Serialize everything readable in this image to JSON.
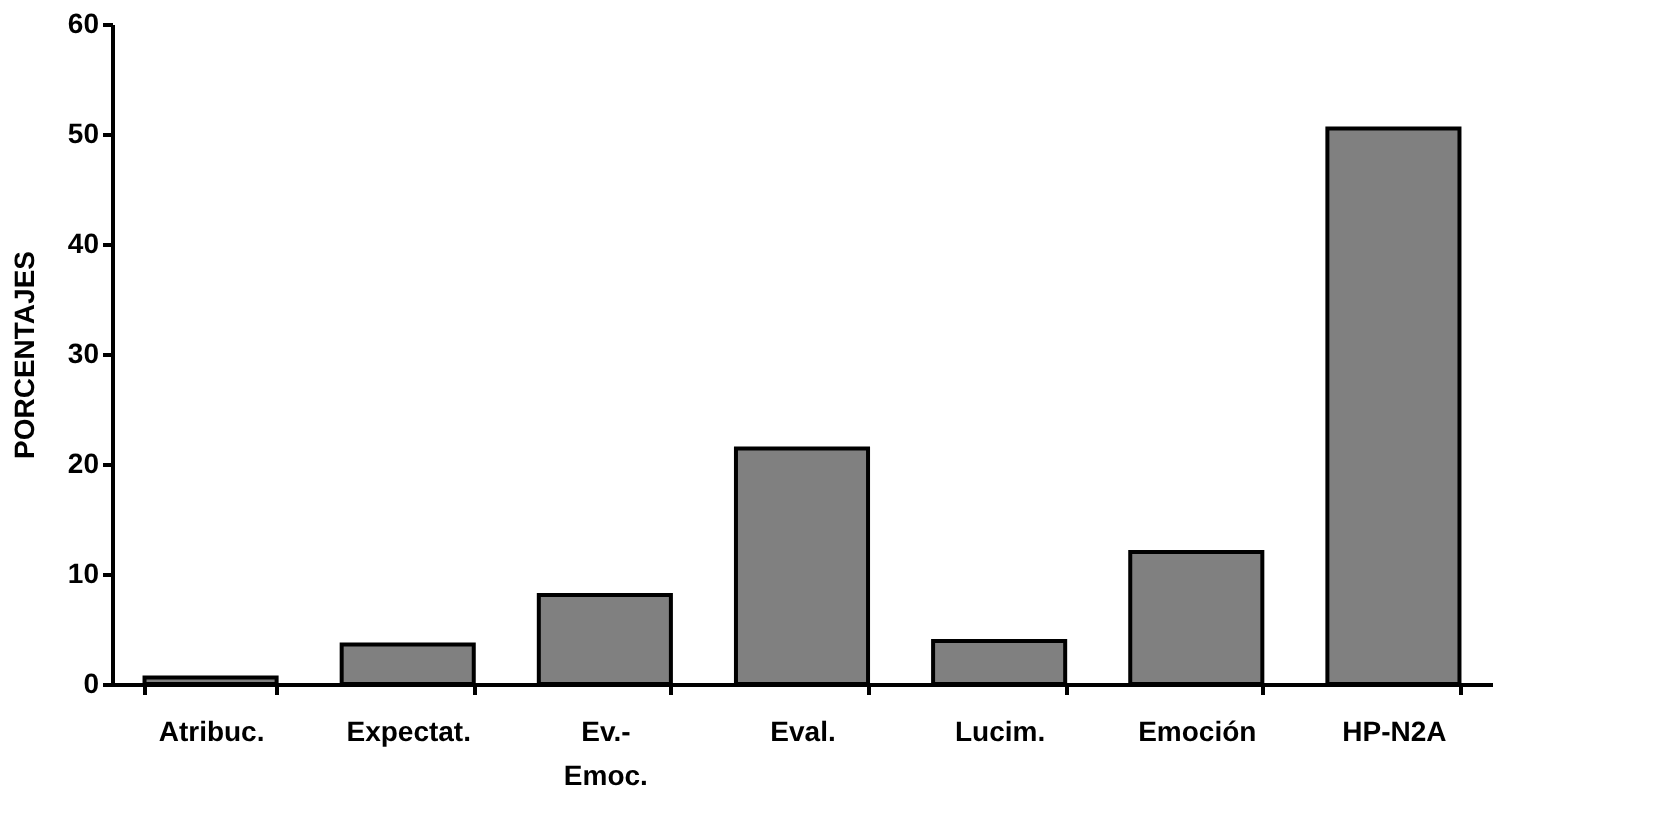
{
  "chart_data": {
    "type": "bar",
    "ylabel": "PORCENTAJES",
    "categories": [
      "Atribuc.",
      "Expectat.",
      "Ev.-\nEmoc.",
      "Eval.",
      "Lucim.",
      "Emoción",
      "HP-N2A"
    ],
    "values": [
      0.6,
      3.6,
      8.1,
      21.4,
      3.9,
      12.0,
      50.5
    ],
    "color": "#808080",
    "ylim": [
      0,
      60
    ],
    "yticks": [
      0,
      10,
      20,
      30,
      40,
      50,
      60
    ],
    "grid": false
  }
}
